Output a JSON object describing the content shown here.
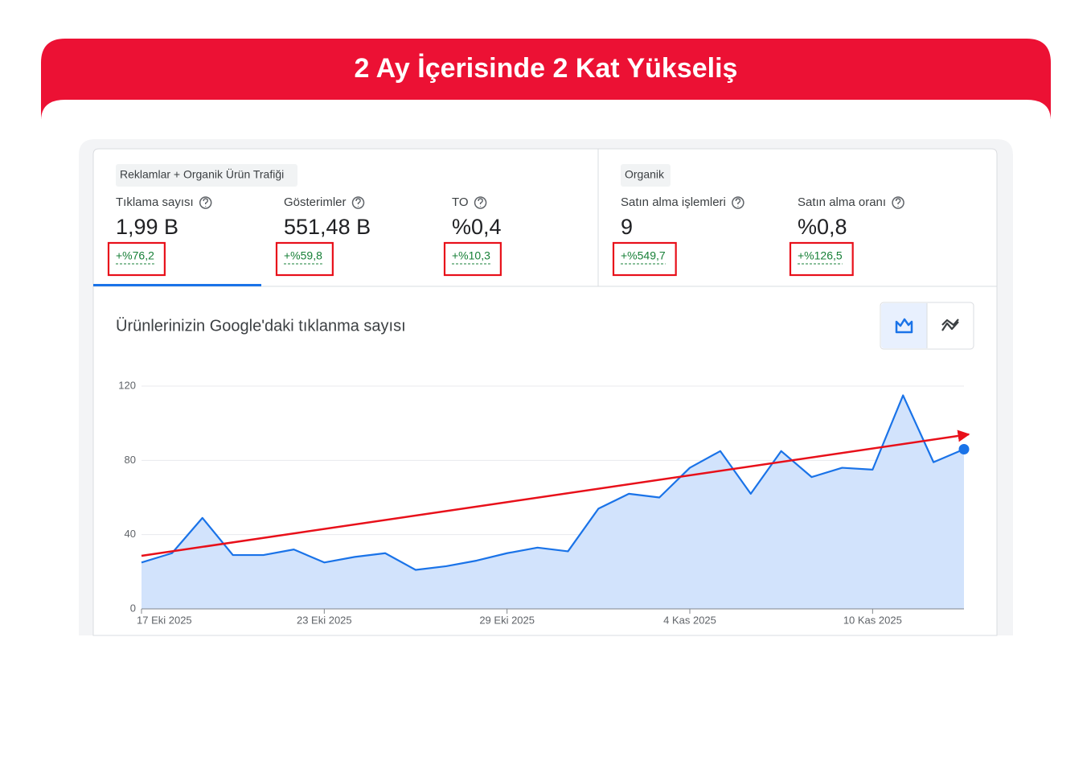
{
  "header": {
    "title": "2 Ay İçerisinde 2 Kat Yükseliş"
  },
  "metric_groups": [
    {
      "label": "Reklamlar + Organik Ürün Trafiği",
      "metrics": [
        {
          "name": "Tıklama sayısı",
          "value": "1,99 B",
          "change": "+%76,2"
        },
        {
          "name": "Gösterimler",
          "value": "551,48 B",
          "change": "+%59,8"
        },
        {
          "name": "TO",
          "value": "%0,4",
          "change": "+%10,3"
        }
      ]
    },
    {
      "label": "Organik",
      "metrics": [
        {
          "name": "Satın alma işlemleri",
          "value": "9",
          "change": "+%549,7"
        },
        {
          "name": "Satın alma oranı",
          "value": "%0,8",
          "change": "+%126,5"
        }
      ]
    }
  ],
  "chart_data": {
    "type": "area",
    "title": "Ürünlerinizin Google'daki tıklanma sayısı",
    "categories": [
      "17 Eki 2025",
      null,
      null,
      null,
      null,
      null,
      "23 Eki 2025",
      null,
      null,
      null,
      null,
      null,
      "29 Eki 2025",
      null,
      null,
      null,
      null,
      null,
      "4 Kas 2025",
      null,
      null,
      null,
      null,
      null,
      "10 Kas 2025",
      null,
      null,
      null
    ],
    "series": [
      {
        "color": "#1a73e8",
        "values": [
          25,
          30,
          49,
          29,
          29,
          32,
          25,
          28,
          30,
          21,
          23,
          26,
          30,
          33,
          31,
          54,
          62,
          60,
          76,
          85,
          62,
          85,
          71,
          76,
          75,
          115,
          79,
          86
        ]
      }
    ],
    "ylim": [
      0,
      120
    ],
    "yticks": [
      0,
      40,
      80,
      120
    ],
    "grid": true
  }
}
